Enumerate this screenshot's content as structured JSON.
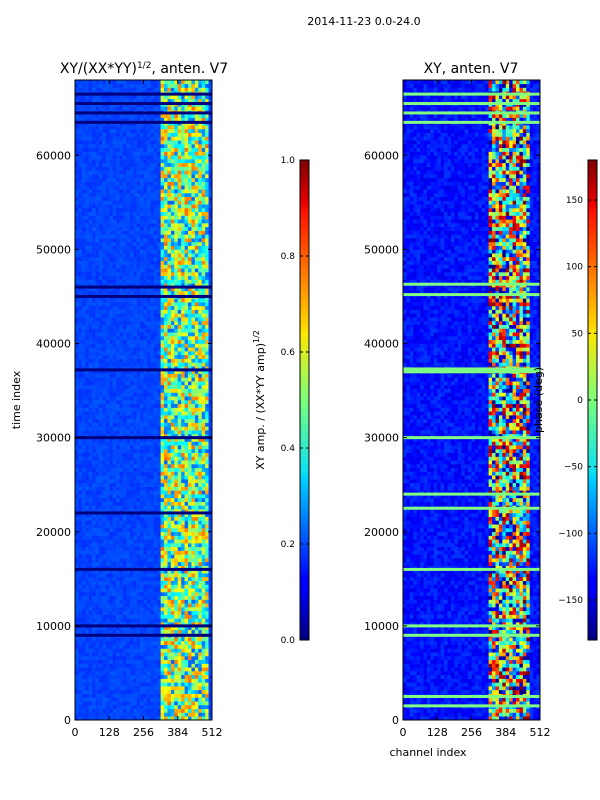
{
  "figure": {
    "suptitle": "2014-11-23 0.0-24.0"
  },
  "chart_data": [
    {
      "type": "heatmap",
      "title": "XY/(XX*YY)^{1/2}, anten. V7",
      "title_main": "XY/(XX*YY)",
      "title_sup": "1/2",
      "title_tail": ", anten. V7",
      "xlabel": "",
      "ylabel": "time index",
      "xlim": [
        0,
        512
      ],
      "ylim": [
        0,
        68000
      ],
      "xticks": [
        0,
        128,
        256,
        384,
        512
      ],
      "yticks": [
        0,
        10000,
        20000,
        30000,
        40000,
        50000,
        60000
      ],
      "colormap": "jet",
      "colorbar": {
        "label": "XY amp. / (XX*YY amp)^{1/2}",
        "label_main": "XY amp. / (XX*YY amp)",
        "label_sup": "1/2",
        "range": [
          0.0,
          1.0
        ],
        "ticks": [
          0.0,
          0.2,
          0.4,
          0.6,
          0.8,
          1.0
        ],
        "tick_labels": [
          "0.0",
          "0.2",
          "0.4",
          "0.6",
          "0.8",
          "1.0"
        ]
      },
      "description": "Mostly low (~0.1-0.2) across channels; elevated bands (~0.4-0.8) in channels ~330-500; flagged rows near time 63000-68000."
    },
    {
      "type": "heatmap",
      "title": "XY, anten. V7",
      "xlabel": "channel index",
      "ylabel": "",
      "xlim": [
        0,
        512
      ],
      "ylim": [
        0,
        68000
      ],
      "xticks": [
        0,
        128,
        256,
        384,
        512
      ],
      "yticks": [
        0,
        10000,
        20000,
        30000,
        40000,
        50000,
        60000
      ],
      "colormap": "jet",
      "colorbar": {
        "label": "phase (deg)",
        "range": [
          -180,
          180
        ],
        "ticks": [
          -150,
          -100,
          -50,
          0,
          50,
          100,
          150
        ],
        "tick_labels": [
          "−150",
          "−100",
          "−50",
          "0",
          "50",
          "100",
          "150"
        ]
      },
      "description": "Phase mostly around -120 to -150 deg; channels ~330-480 vary strongly between -180 and 180; horizontal flagged lines at 0 deg."
    }
  ]
}
